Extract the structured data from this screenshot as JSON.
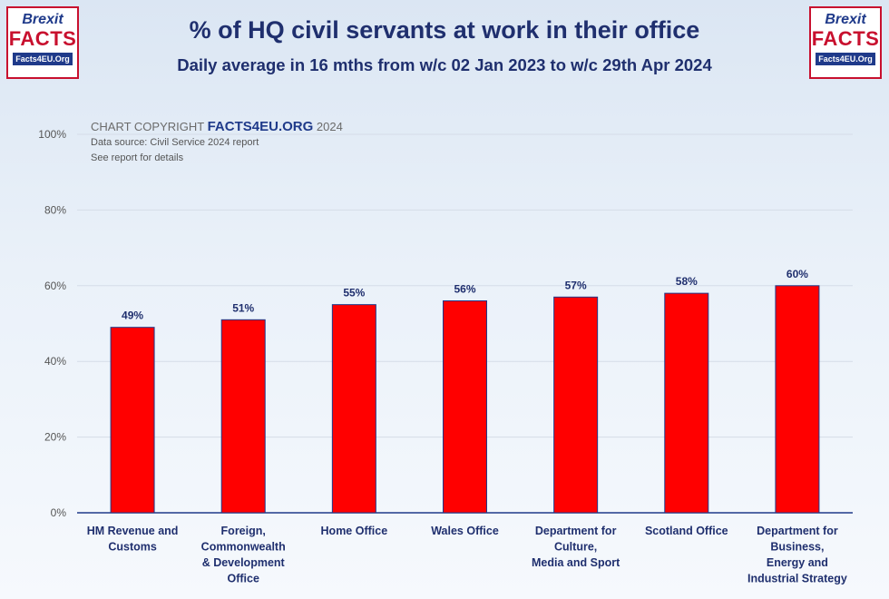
{
  "header": {
    "title": "% of HQ civil servants at work in their office",
    "subtitle": "Daily average in 16 mths from w/c 02 Jan 2023 to w/c 29th Apr 2024"
  },
  "logo": {
    "line1": "Brexit",
    "line2": "FACTS",
    "site": "Facts4EU.Org"
  },
  "copyright": {
    "prefix": "CHART COPYRIGHT",
    "brand": "FACTS4EU.ORG",
    "year": "2024",
    "source": "Data source: Civil Service 2024 report",
    "note": "See report for details"
  },
  "colors": {
    "bar": "#ff0000",
    "title": "#1f2f6e",
    "label": "#1f2f6e"
  },
  "chart_data": {
    "type": "bar",
    "title": "% of HQ civil servants at work in their office",
    "xlabel": "",
    "ylabel": "",
    "ylim": [
      0,
      100
    ],
    "yticks": [
      {
        "value": 0,
        "label": "0%"
      },
      {
        "value": 20,
        "label": "20%"
      },
      {
        "value": 40,
        "label": "40%"
      },
      {
        "value": 60,
        "label": "60%"
      },
      {
        "value": 80,
        "label": "80%"
      },
      {
        "value": 100,
        "label": "100%"
      }
    ],
    "grid": true,
    "categories": [
      [
        "HM Revenue and",
        "Customs"
      ],
      [
        "Foreign,",
        "Commonwealth",
        "& Development",
        "Office"
      ],
      [
        "Home Office"
      ],
      [
        "Wales Office"
      ],
      [
        "Department for",
        "Culture,",
        "Media and Sport"
      ],
      [
        "Scotland Office"
      ],
      [
        "Department for",
        "Business,",
        "Energy and",
        "Industrial Strategy"
      ]
    ],
    "values": [
      49,
      51,
      55,
      56,
      57,
      58,
      60
    ],
    "data_labels": [
      "49%",
      "51%",
      "55%",
      "56%",
      "57%",
      "58%",
      "60%"
    ]
  }
}
